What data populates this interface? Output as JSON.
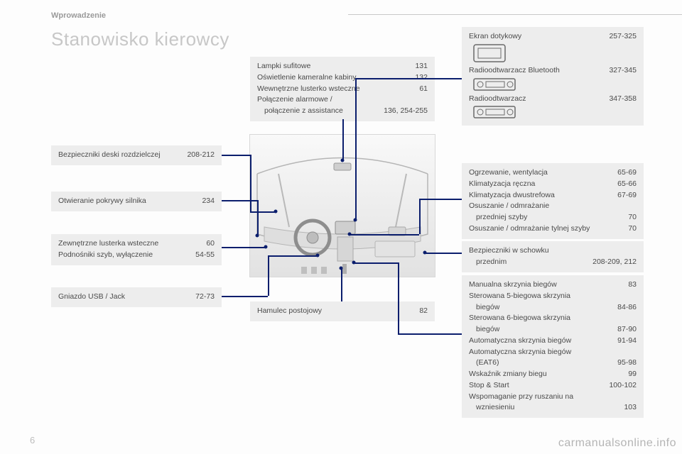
{
  "meta": {
    "section": "Wprowadzenie",
    "title": "Stanowisko kierowcy",
    "page_number": "6",
    "watermark": "carmanualsonline.info"
  },
  "boxes": {
    "top_center": {
      "items": [
        {
          "label": "Lampki sufitowe",
          "pages": "131"
        },
        {
          "label": "Oświetlenie kameralne kabiny",
          "pages": "132"
        },
        {
          "label": "Wewnętrzne lusterko wsteczne",
          "pages": "61"
        },
        {
          "label": "Połączenie alarmowe /",
          "pages": ""
        },
        {
          "label": "połączenie z assistance",
          "pages": "136, 254-255",
          "indent": true
        }
      ]
    },
    "left1": {
      "items": [
        {
          "label": "Bezpieczniki deski rozdzielczej",
          "pages": "208-212"
        }
      ]
    },
    "left2": {
      "items": [
        {
          "label": "Otwieranie pokrywy silnika",
          "pages": "234"
        }
      ]
    },
    "left3": {
      "items": [
        {
          "label": "Zewnętrzne lusterka wsteczne",
          "pages": "60"
        },
        {
          "label": "Podnośniki szyb, wyłączenie",
          "pages": "54-55"
        }
      ]
    },
    "left4": {
      "items": [
        {
          "label": "Gniazdo USB / Jack",
          "pages": "72-73"
        }
      ]
    },
    "bottom_center": {
      "items": [
        {
          "label": "Hamulec postojowy",
          "pages": "82"
        }
      ]
    },
    "right_top": {
      "items": [
        {
          "label": "Ekran dotykowy",
          "pages": "257-325",
          "icon": "screen"
        },
        {
          "label": "Radioodtwarzacz Bluetooth",
          "pages": "327-345",
          "icon": "radio"
        },
        {
          "label": "Radioodtwarzacz",
          "pages": "347-358",
          "icon": "radio"
        }
      ]
    },
    "right_mid": {
      "items": [
        {
          "label": "Ogrzewanie, wentylacja",
          "pages": "65-69"
        },
        {
          "label": "Klimatyzacja ręczna",
          "pages": "65-66"
        },
        {
          "label": "Klimatyzacja dwustrefowa",
          "pages": "67-69"
        },
        {
          "label": "Osuszanie / odmrażanie",
          "pages": ""
        },
        {
          "label": "przedniej szyby",
          "pages": "70",
          "indent": true
        },
        {
          "label": "Osuszanie / odmrażanie tylnej szyby",
          "pages": "70"
        }
      ]
    },
    "right_fuse": {
      "items": [
        {
          "label": "Bezpieczniki w schowku",
          "pages": ""
        },
        {
          "label": "przednim",
          "pages": "208-209, 212",
          "indent": true
        }
      ]
    },
    "right_bottom": {
      "items": [
        {
          "label": "Manualna skrzynia biegów",
          "pages": "83"
        },
        {
          "label": "Sterowana 5-biegowa skrzynia",
          "pages": ""
        },
        {
          "label": "biegów",
          "pages": "84-86",
          "indent": true
        },
        {
          "label": "Sterowana 6-biegowa skrzynia",
          "pages": ""
        },
        {
          "label": "biegów",
          "pages": "87-90",
          "indent": true
        },
        {
          "label": "Automatyczna skrzynia biegów",
          "pages": "91-94"
        },
        {
          "label": "Automatyczna skrzynia biegów",
          "pages": ""
        },
        {
          "label": "(EAT6)",
          "pages": "95-98",
          "indent": true
        },
        {
          "label": "Wskaźnik zmiany biegu",
          "pages": "99"
        },
        {
          "label": "Stop & Start",
          "pages": "100-102"
        },
        {
          "label": "Wspomaganie przy ruszaniu na",
          "pages": ""
        },
        {
          "label": "wzniesieniu",
          "pages": "103",
          "indent": true
        }
      ]
    }
  },
  "layout": {
    "box_bg": "#ededed",
    "line_color": "#0b1e6d",
    "title_color": "#c7c7c7"
  }
}
